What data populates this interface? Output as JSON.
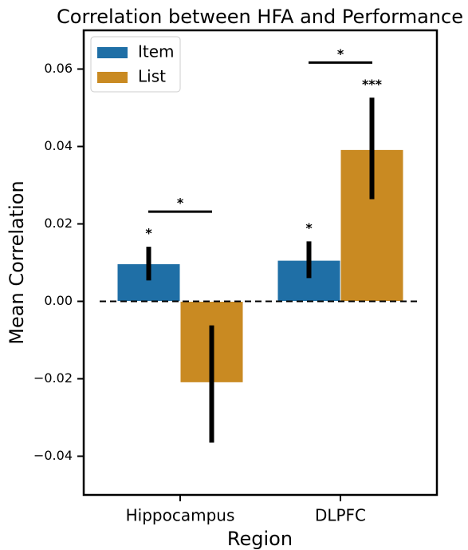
{
  "chart_data": {
    "type": "bar",
    "title": "Correlation between HFA and Performance",
    "x_label": "Region",
    "y_label": "Mean Correlation",
    "categories": [
      "Hippocampus",
      "DLPFC"
    ],
    "series": [
      {
        "name": "Item",
        "color": "#1f6fa6",
        "values": [
          0.0097,
          0.0106
        ],
        "ci_low": [
          0.0054,
          0.006
        ],
        "ci_high": [
          0.0141,
          0.0155
        ],
        "significance": [
          "*",
          "*"
        ]
      },
      {
        "name": "List",
        "color": "#c98a22",
        "values": [
          -0.021,
          0.0392
        ],
        "ci_low": [
          -0.0365,
          0.0264
        ],
        "ci_high": [
          -0.0062,
          0.0526
        ],
        "significance": [
          null,
          "***"
        ]
      }
    ],
    "comparison_significance": [
      "*",
      "*"
    ],
    "ylim": [
      -0.05,
      0.07
    ],
    "yticks": [
      {
        "value": -0.04,
        "label": "−0.04"
      },
      {
        "value": -0.02,
        "label": "−0.02"
      },
      {
        "value": 0,
        "label": "0.00"
      },
      0.02,
      0.04,
      0.06
    ],
    "legend": "upper left"
  }
}
